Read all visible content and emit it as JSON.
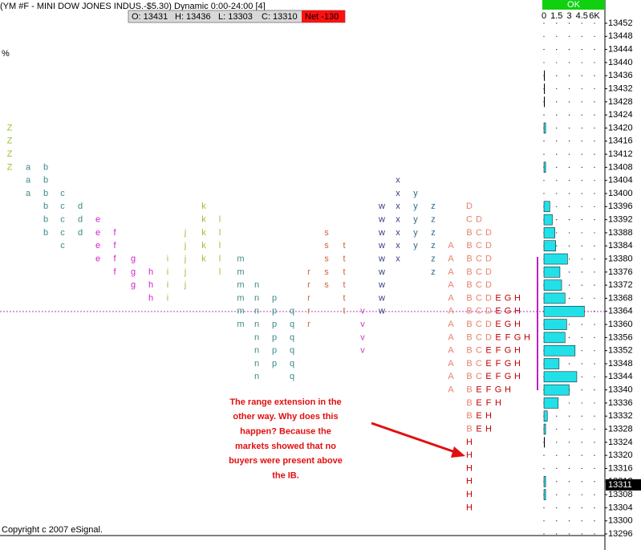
{
  "header": {
    "title": "(YM #F - MINI DOW JONES INDUS.-$5.30) Dynamic 0:00-24:00 [4]",
    "open": "O: 13431",
    "high": "H: 13436",
    "low": "L: 13303",
    "close": "C: 13310",
    "net": "Net -130",
    "status": "OK",
    "percent": "%"
  },
  "price_axis": {
    "ylim": [
      13296,
      13452
    ],
    "yticks": [
      13452,
      13448,
      13444,
      13440,
      13436,
      13432,
      13428,
      13424,
      13420,
      13416,
      13412,
      13408,
      13404,
      13400,
      13396,
      13392,
      13388,
      13384,
      13380,
      13376,
      13372,
      13368,
      13364,
      13360,
      13356,
      13352,
      13348,
      13344,
      13340,
      13336,
      13332,
      13328,
      13324,
      13320,
      13316,
      13312,
      13308,
      13304,
      13300,
      13296
    ],
    "current": 13311
  },
  "profile": {
    "columns": [
      {
        "letter": "Z",
        "color": "#99c030",
        "prices": [
          13420,
          13416,
          13412,
          13408
        ]
      },
      {
        "letter": "a",
        "color": "#3a8a8a",
        "prices": [
          13408,
          13404,
          13400
        ]
      },
      {
        "letter": "b",
        "color": "#3a8a8a",
        "prices": [
          13408,
          13404,
          13400,
          13396,
          13392,
          13388
        ]
      },
      {
        "letter": "c",
        "color": "#3a8a8a",
        "prices": [
          13400,
          13396,
          13392,
          13388,
          13384
        ]
      },
      {
        "letter": "d",
        "color": "#3a8a8a",
        "prices": [
          13396,
          13392,
          13388
        ]
      },
      {
        "letter": "e",
        "color": "#d020d0",
        "prices": [
          13392,
          13388,
          13384,
          13380
        ]
      },
      {
        "letter": "f",
        "color": "#d020d0",
        "prices": [
          13388,
          13384,
          13380,
          13376
        ]
      },
      {
        "letter": "g",
        "color": "#d020d0",
        "prices": [
          13380,
          13376,
          13372
        ]
      },
      {
        "letter": "h",
        "color": "#d020d0",
        "prices": [
          13376,
          13372,
          13368
        ]
      },
      {
        "letter": "i",
        "color": "#99c030",
        "prices": [
          13380,
          13376,
          13372,
          13368
        ]
      },
      {
        "letter": "j",
        "color": "#99c030",
        "prices": [
          13388,
          13384,
          13380,
          13376,
          13372
        ]
      },
      {
        "letter": "k",
        "color": "#99c030",
        "prices": [
          13396,
          13392,
          13388,
          13384,
          13380
        ]
      },
      {
        "letter": "l",
        "color": "#99c030",
        "prices": [
          13392,
          13388,
          13384,
          13380,
          13376
        ]
      },
      {
        "letter": "m",
        "color": "#3a8a8a",
        "prices": [
          13380,
          13376,
          13372,
          13368,
          13364,
          13360
        ]
      },
      {
        "letter": "n",
        "color": "#3a8a8a",
        "prices": [
          13372,
          13368,
          13364,
          13360,
          13356,
          13352,
          13348,
          13344
        ]
      },
      {
        "letter": "p",
        "color": "#3a8a8a",
        "prices": [
          13368,
          13364,
          13360,
          13356,
          13352,
          13348
        ]
      },
      {
        "letter": "q",
        "color": "#3a8a8a",
        "prices": [
          13364,
          13360,
          13356,
          13352,
          13348,
          13344
        ]
      },
      {
        "letter": "r",
        "color": "#c86430",
        "prices": [
          13376,
          13372,
          13368,
          13364,
          13360
        ]
      },
      {
        "letter": "s",
        "color": "#c86430",
        "prices": [
          13388,
          13384,
          13380,
          13376,
          13372
        ]
      },
      {
        "letter": "t",
        "color": "#c86430",
        "prices": [
          13384,
          13380,
          13376,
          13372,
          13368,
          13364
        ]
      },
      {
        "letter": "v",
        "color": "#c040c0",
        "prices": [
          13364,
          13360,
          13356,
          13352
        ]
      },
      {
        "letter": "w",
        "color": "#333a80",
        "prices": [
          13396,
          13392,
          13388,
          13384,
          13380,
          13376,
          13372,
          13368,
          13364
        ]
      },
      {
        "letter": "x",
        "color": "#333a80",
        "prices": [
          13404,
          13400,
          13396,
          13392,
          13388,
          13384,
          13380
        ]
      },
      {
        "letter": "y",
        "color": "#2a6a8a",
        "prices": [
          13400,
          13396,
          13392,
          13388,
          13384
        ]
      },
      {
        "letter": "z",
        "color": "#2a6a8a",
        "prices": [
          13396,
          13392,
          13388,
          13384,
          13380,
          13376
        ]
      },
      {
        "letter": "A",
        "color": "#e8806a",
        "prices": [
          13384,
          13380,
          13376,
          13372,
          13368,
          13364,
          13360,
          13356,
          13352,
          13348,
          13344,
          13340
        ]
      }
    ],
    "period_colors": {
      "B": "#e8806a",
      "C": "#e8806a",
      "D": "#e8806a",
      "E": "#c00000",
      "F": "#c00000",
      "G": "#c00000",
      "H": "#c00000"
    },
    "rows": [
      {
        "price": 13396,
        "letters": [
          "D"
        ]
      },
      {
        "price": 13392,
        "letters": [
          "C",
          "D"
        ]
      },
      {
        "price": 13388,
        "letters": [
          "B",
          "C",
          "D"
        ]
      },
      {
        "price": 13384,
        "letters": [
          "B",
          "C",
          "D"
        ]
      },
      {
        "price": 13380,
        "letters": [
          "B",
          "C",
          "D"
        ]
      },
      {
        "price": 13376,
        "letters": [
          "B",
          "C",
          "D"
        ]
      },
      {
        "price": 13372,
        "letters": [
          "B",
          "C",
          "D"
        ]
      },
      {
        "price": 13368,
        "letters": [
          "B",
          "C",
          "D",
          "E",
          "G",
          "H"
        ]
      },
      {
        "price": 13364,
        "letters": [
          "B",
          "C",
          "D",
          "E",
          "G",
          "H"
        ]
      },
      {
        "price": 13360,
        "letters": [
          "B",
          "C",
          "D",
          "E",
          "G",
          "H"
        ]
      },
      {
        "price": 13356,
        "letters": [
          "B",
          "C",
          "D",
          "E",
          "F",
          "G",
          "H"
        ]
      },
      {
        "price": 13352,
        "letters": [
          "B",
          "C",
          "E",
          "F",
          "G",
          "H"
        ]
      },
      {
        "price": 13348,
        "letters": [
          "B",
          "C",
          "E",
          "F",
          "G",
          "H"
        ]
      },
      {
        "price": 13344,
        "letters": [
          "B",
          "C",
          "E",
          "F",
          "G",
          "H"
        ]
      },
      {
        "price": 13340,
        "letters": [
          "B",
          "E",
          "F",
          "G",
          "H"
        ]
      },
      {
        "price": 13336,
        "letters": [
          "B",
          "E",
          "F",
          "H"
        ]
      },
      {
        "price": 13332,
        "letters": [
          "B",
          "E",
          "H"
        ]
      },
      {
        "price": 13328,
        "letters": [
          "B",
          "E",
          "H"
        ]
      },
      {
        "price": 13324,
        "letters": [
          "H"
        ]
      },
      {
        "price": 13320,
        "letters": [
          "H"
        ]
      },
      {
        "price": 13316,
        "letters": [
          "H"
        ]
      },
      {
        "price": 13312,
        "letters": [
          "H"
        ]
      },
      {
        "price": 13308,
        "letters": [
          "H"
        ]
      },
      {
        "price": 13304,
        "letters": [
          "H"
        ]
      }
    ]
  },
  "volume": {
    "xlim": [
      0,
      6
    ],
    "xticks": [
      0,
      1.5,
      3,
      4.5,
      {
        "value": 6,
        "label": "6K"
      }
    ],
    "color": "#22e0e8",
    "prices": [
      13436,
      13432,
      13428,
      13420,
      13408,
      13396,
      13392,
      13388,
      13384,
      13380,
      13376,
      13372,
      13368,
      13364,
      13360,
      13356,
      13352,
      13348,
      13344,
      13340,
      13336,
      13332,
      13328,
      13324,
      13312,
      13308
    ],
    "values": [
      0.1,
      0.1,
      0.1,
      0.2,
      0.2,
      0.7,
      1.0,
      1.3,
      1.4,
      2.8,
      1.9,
      2.1,
      2.5,
      4.8,
      2.7,
      2.5,
      3.7,
      1.8,
      3.9,
      3.0,
      1.7,
      0.4,
      0.2,
      0.1,
      0.2,
      0.2
    ]
  },
  "annotation": [
    "The range extension in the",
    "other way. Why does this",
    "happen? Because the",
    "markets showed that no",
    "buyers were present above",
    "the IB."
  ],
  "footer": "Copyright c 2007 eSignal."
}
